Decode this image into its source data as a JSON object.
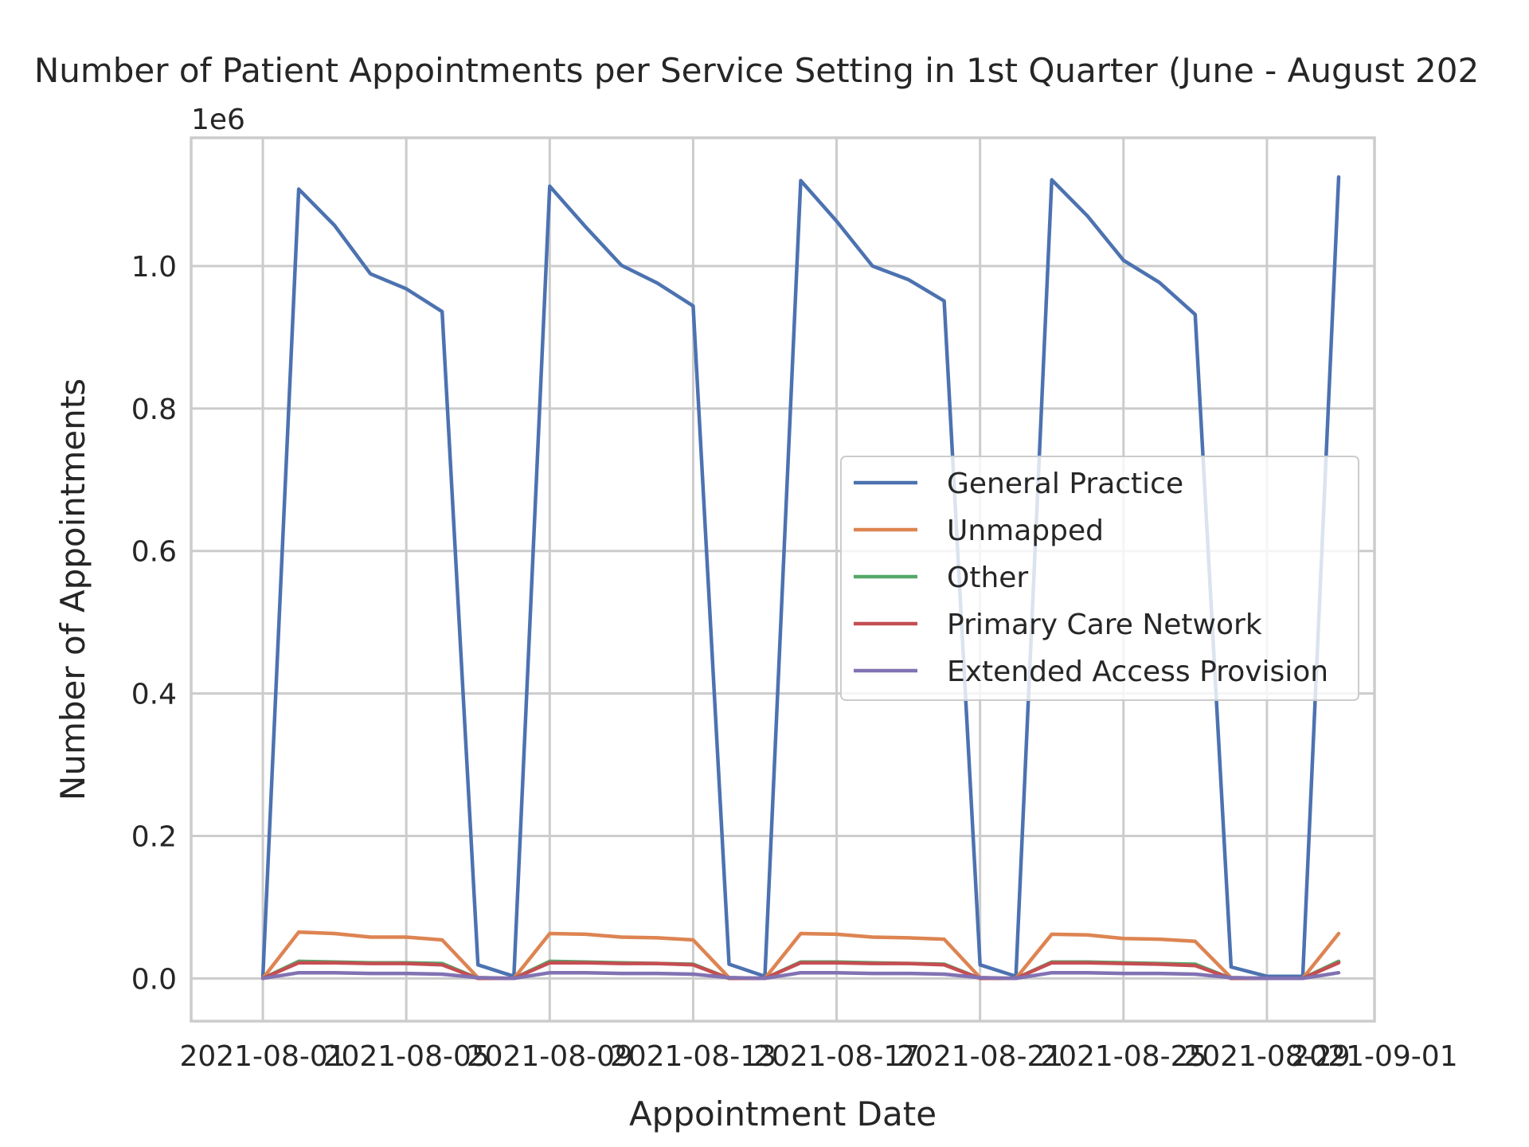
{
  "chart_data": {
    "type": "line",
    "title": "Number of Patient Appointments per Service Setting in 1st Quarter (June - August 202",
    "xlabel": "Appointment Date",
    "ylabel": "Number of Appointments",
    "y_offset_label": "1e6",
    "ylim": [
      -0.06,
      1.18
    ],
    "xlim": [
      "2021-07-30",
      "2021-09-01"
    ],
    "grid": true,
    "legend_position": "center-right",
    "x_ticks": [
      {
        "label": "2021-08-01",
        "date": "2021-08-01"
      },
      {
        "label": "2021-08-05",
        "date": "2021-08-05"
      },
      {
        "label": "2021-08-09",
        "date": "2021-08-09"
      },
      {
        "label": "2021-08-13",
        "date": "2021-08-13"
      },
      {
        "label": "2021-08-17",
        "date": "2021-08-17"
      },
      {
        "label": "2021-08-21",
        "date": "2021-08-21"
      },
      {
        "label": "2021-08-25",
        "date": "2021-08-25"
      },
      {
        "label": "2021-08-29",
        "date": "2021-08-29"
      },
      {
        "label": "2021-09-01",
        "date": "2021-09-01"
      }
    ],
    "y_ticks": [
      {
        "label": "0.0",
        "value": 0.0
      },
      {
        "label": "0.2",
        "value": 0.2
      },
      {
        "label": "0.4",
        "value": 0.4
      },
      {
        "label": "0.6",
        "value": 0.6
      },
      {
        "label": "0.8",
        "value": 0.8
      },
      {
        "label": "1.0",
        "value": 1.0
      }
    ],
    "x": [
      "2021-08-01",
      "2021-08-02",
      "2021-08-03",
      "2021-08-04",
      "2021-08-05",
      "2021-08-06",
      "2021-08-07",
      "2021-08-08",
      "2021-08-09",
      "2021-08-10",
      "2021-08-11",
      "2021-08-12",
      "2021-08-13",
      "2021-08-14",
      "2021-08-15",
      "2021-08-16",
      "2021-08-17",
      "2021-08-18",
      "2021-08-19",
      "2021-08-20",
      "2021-08-21",
      "2021-08-22",
      "2021-08-23",
      "2021-08-24",
      "2021-08-25",
      "2021-08-26",
      "2021-08-27",
      "2021-08-28",
      "2021-08-29",
      "2021-08-30",
      "2021-08-31"
    ],
    "series": [
      {
        "name": "General Practice",
        "color": "#4c72b0",
        "values": [
          0.003,
          1.108,
          1.057,
          0.989,
          0.968,
          0.936,
          0.019,
          0.003,
          1.112,
          1.055,
          1.001,
          0.976,
          0.944,
          0.02,
          0.003,
          1.12,
          1.063,
          1.0,
          0.981,
          0.951,
          0.019,
          0.003,
          1.121,
          1.07,
          1.008,
          0.977,
          0.932,
          0.016,
          0.003,
          0.003,
          1.125
        ]
      },
      {
        "name": "Unmapped",
        "color": "#dd8452",
        "values": [
          0.0,
          0.065,
          0.063,
          0.058,
          0.058,
          0.054,
          0.001,
          0.0,
          0.063,
          0.062,
          0.058,
          0.057,
          0.054,
          0.001,
          0.0,
          0.063,
          0.062,
          0.058,
          0.057,
          0.055,
          0.001,
          0.0,
          0.062,
          0.061,
          0.056,
          0.055,
          0.052,
          0.001,
          0.0,
          0.0,
          0.063
        ]
      },
      {
        "name": "Other",
        "color": "#55a868",
        "values": [
          0.0,
          0.024,
          0.023,
          0.022,
          0.022,
          0.021,
          0.0,
          0.0,
          0.024,
          0.023,
          0.022,
          0.021,
          0.02,
          0.0,
          0.0,
          0.023,
          0.023,
          0.022,
          0.021,
          0.02,
          0.0,
          0.0,
          0.023,
          0.023,
          0.022,
          0.021,
          0.02,
          0.0,
          0.0,
          0.0,
          0.024
        ]
      },
      {
        "name": "Primary Care Network",
        "color": "#c44e52",
        "values": [
          0.0,
          0.022,
          0.022,
          0.021,
          0.021,
          0.019,
          0.0,
          0.0,
          0.022,
          0.022,
          0.021,
          0.021,
          0.019,
          0.0,
          0.0,
          0.022,
          0.022,
          0.021,
          0.021,
          0.019,
          0.0,
          0.0,
          0.022,
          0.022,
          0.021,
          0.02,
          0.018,
          0.0,
          0.0,
          0.0,
          0.022
        ]
      },
      {
        "name": "Extended Access Provision",
        "color": "#8172b3",
        "values": [
          0.0,
          0.008,
          0.008,
          0.007,
          0.007,
          0.006,
          0.001,
          0.0,
          0.008,
          0.008,
          0.007,
          0.007,
          0.006,
          0.001,
          0.0,
          0.008,
          0.008,
          0.007,
          0.007,
          0.006,
          0.001,
          0.0,
          0.008,
          0.008,
          0.007,
          0.007,
          0.006,
          0.001,
          0.0,
          0.0,
          0.008
        ]
      }
    ]
  }
}
